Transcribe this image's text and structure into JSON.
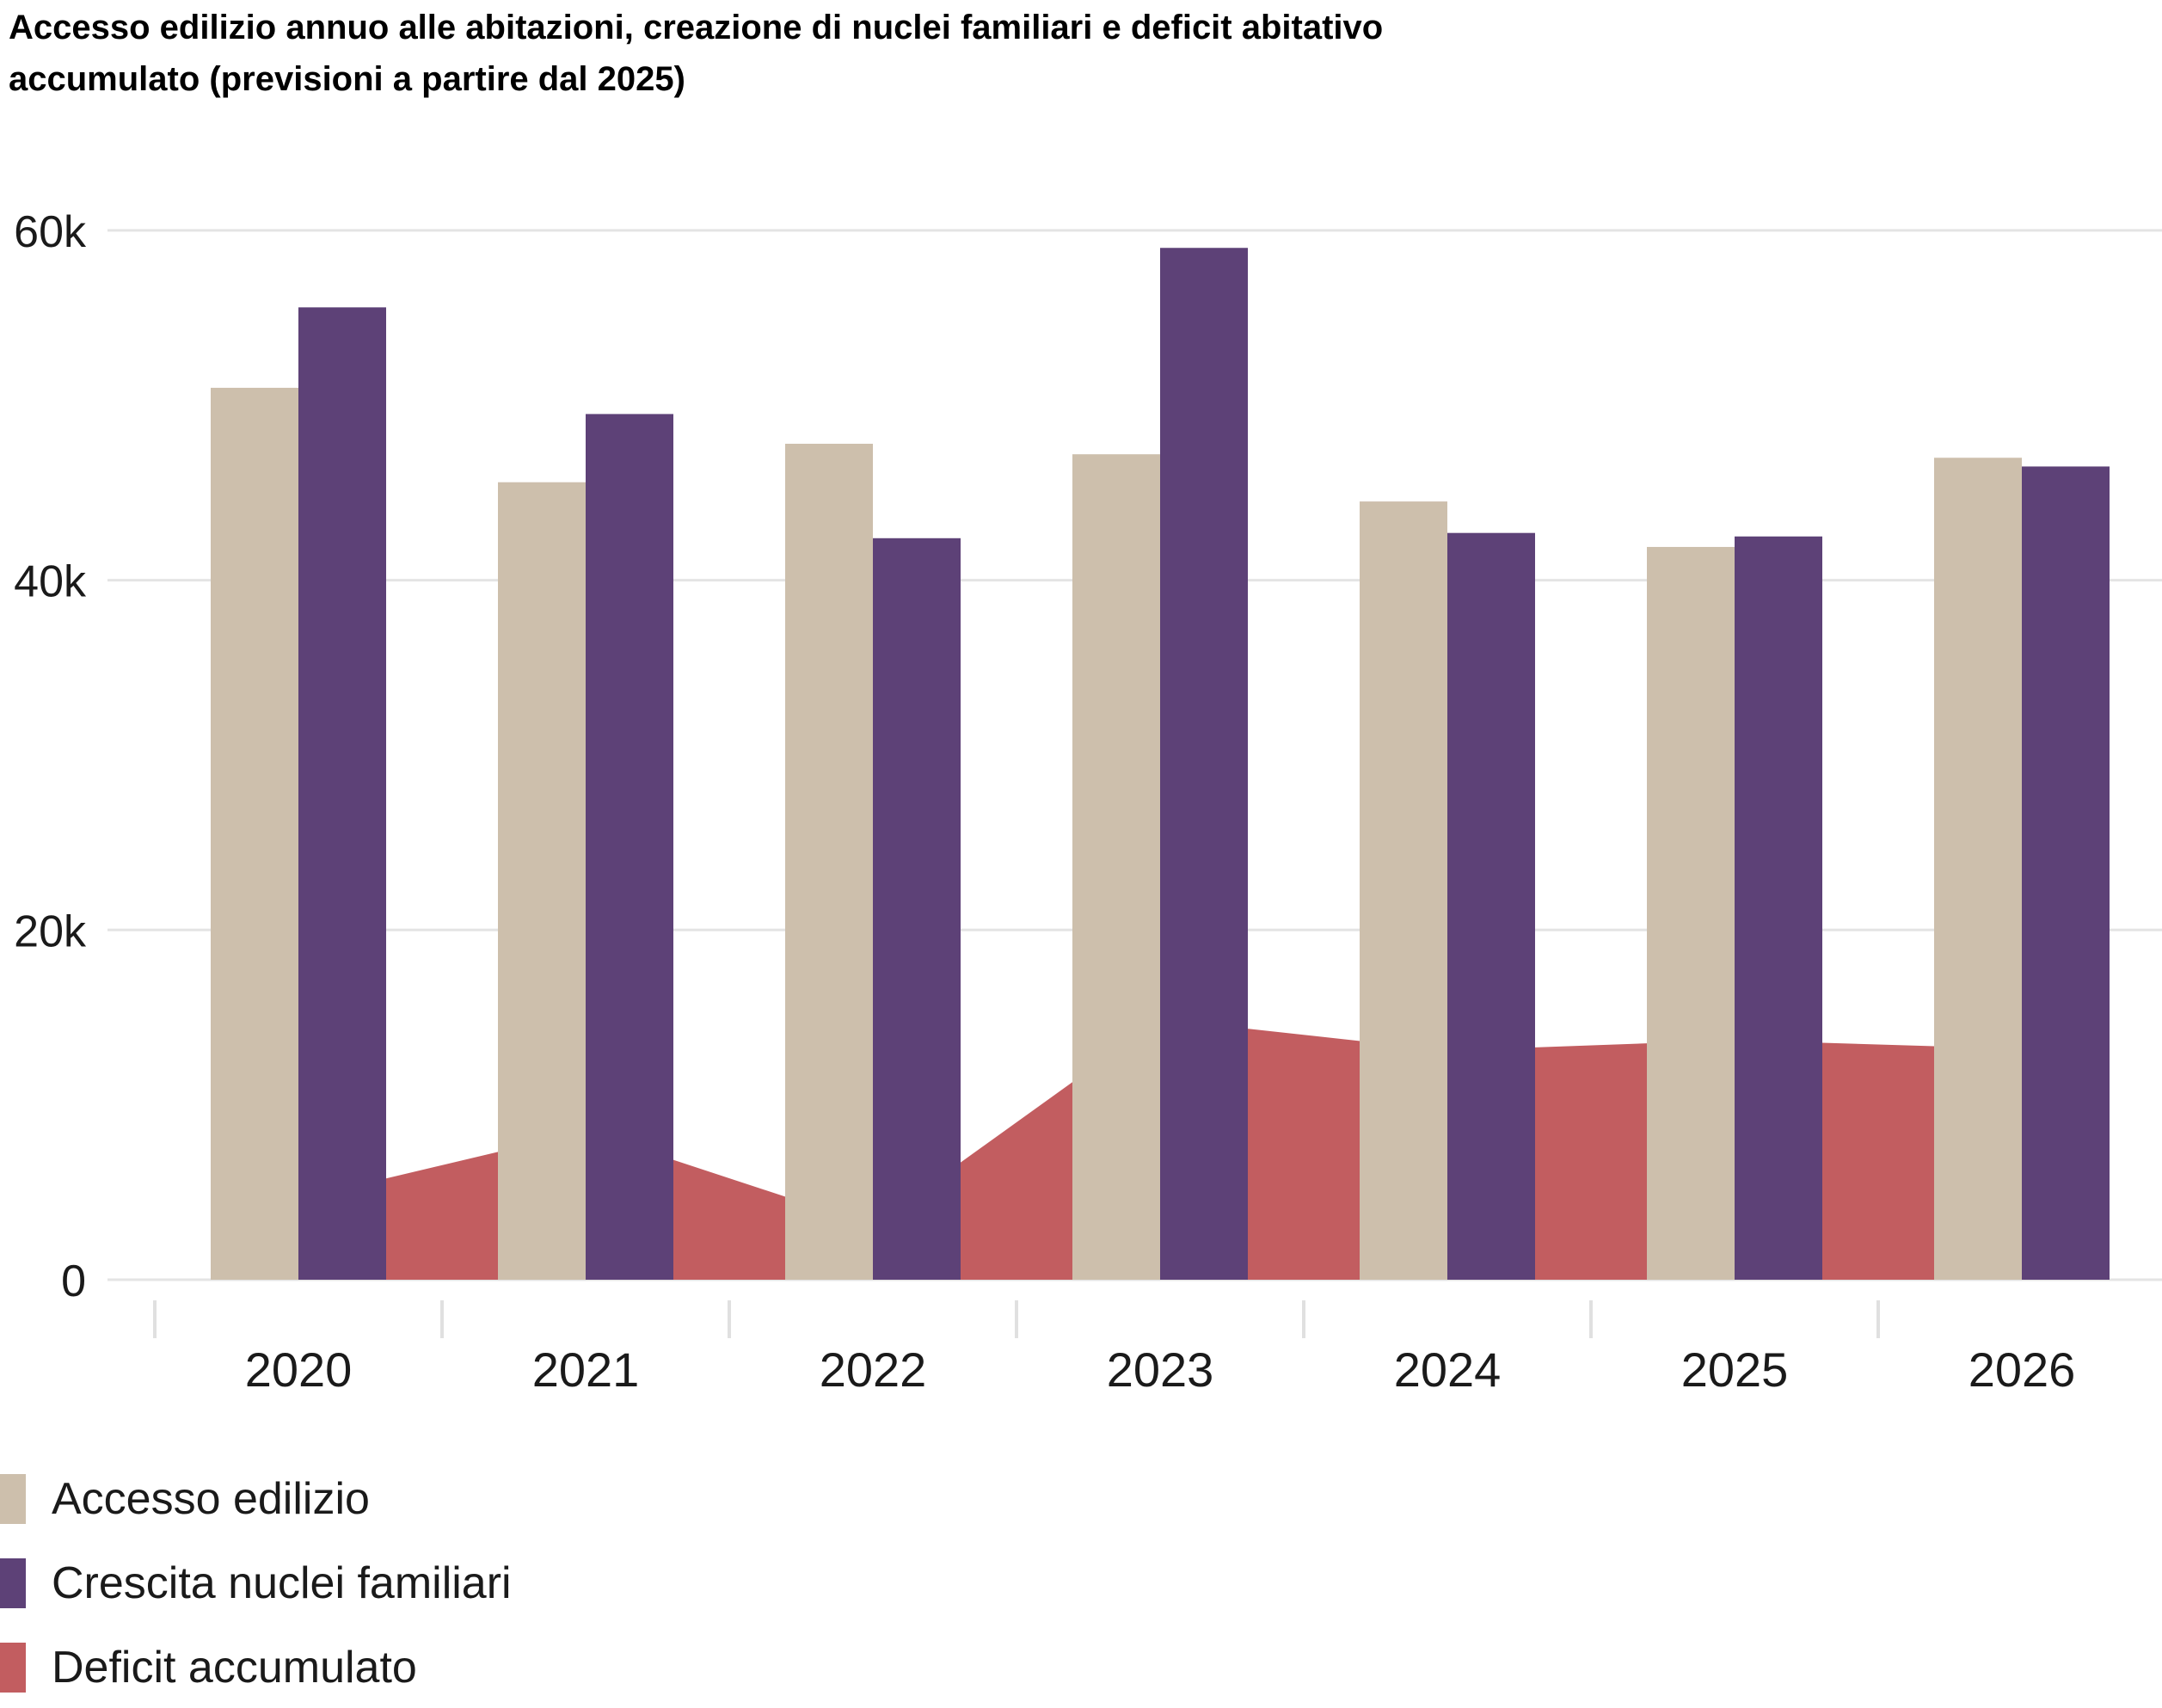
{
  "title": "Accesso edilizio annuo alle abitazioni, creazione di nuclei familiari e deficit abitativo\naccumulato (previsioni a partire dal 2025)",
  "chart_data": {
    "type": "bar",
    "title": "Accesso edilizio annuo alle abitazioni, creazione di nuclei familiari e deficit abitativo accumulato (previsioni a partire dal 2025)",
    "categories": [
      "2020",
      "2021",
      "2022",
      "2023",
      "2024",
      "2025",
      "2026"
    ],
    "series": [
      {
        "name": "Accesso edilizio",
        "type": "bar",
        "color": "#cdbfac",
        "values": [
          51000,
          45600,
          47800,
          47200,
          44500,
          41900,
          47000
        ]
      },
      {
        "name": "Crescita nuclei familiari",
        "type": "bar",
        "color": "#5d4177",
        "values": [
          55600,
          49500,
          42400,
          59000,
          42700,
          42500,
          46500
        ]
      },
      {
        "name": "Deficit accumulato",
        "type": "area",
        "color": "#c25d60",
        "values": [
          4600,
          8500,
          3100,
          14900,
          13100,
          13700,
          13200
        ]
      }
    ],
    "xlabel": "",
    "ylabel": "",
    "ylim": [
      0,
      66000
    ],
    "yticks": [
      {
        "value": 0,
        "label": "0"
      },
      {
        "value": 20000,
        "label": "20k"
      },
      {
        "value": 40000,
        "label": "40k"
      },
      {
        "value": 60000,
        "label": "60k"
      }
    ],
    "grid": true,
    "legend_position": "bottom-left",
    "forecast_note": "previsioni a partire dal 2025"
  },
  "colors": {
    "background": "#ffffff",
    "gridline": "#e4e4e4",
    "tick": "#e0e0e0",
    "text": "#1a1a1a",
    "title_text": "#000000"
  }
}
